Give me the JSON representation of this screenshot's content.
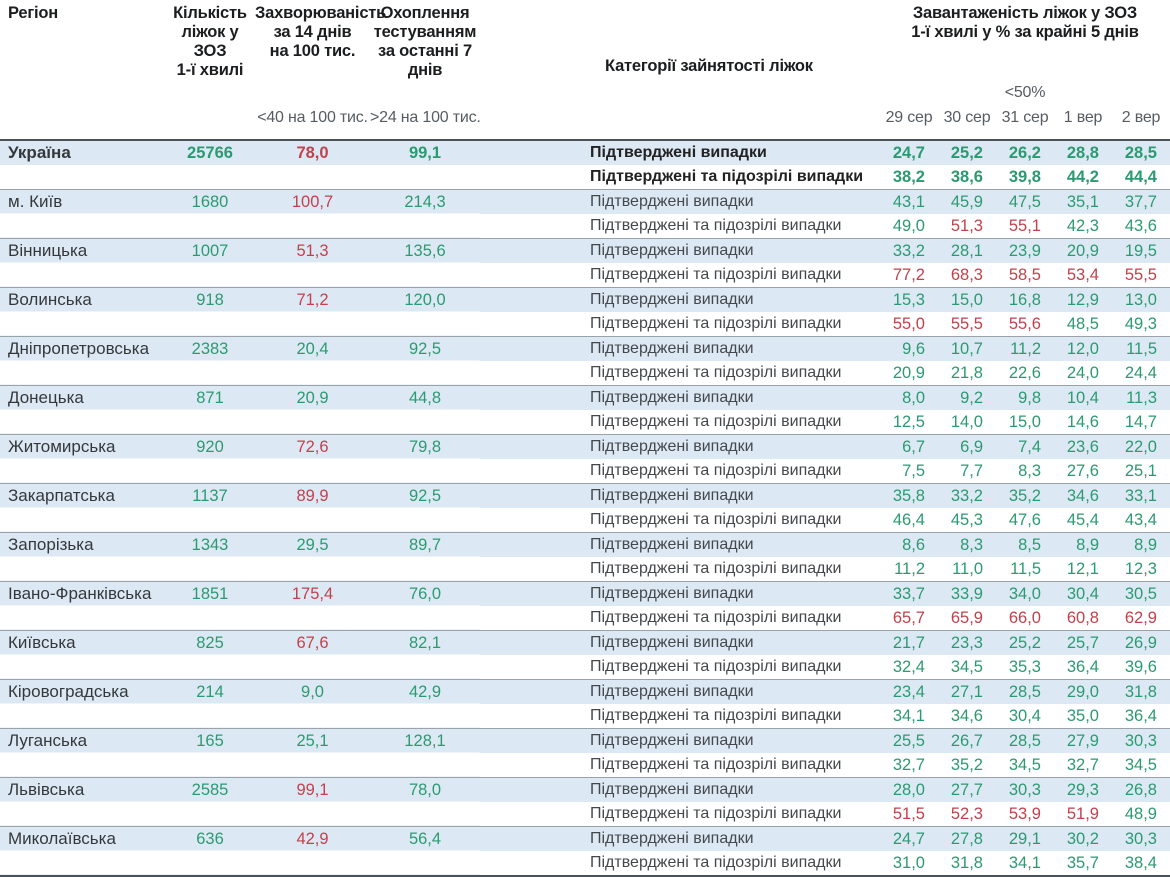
{
  "colors": {
    "good_green": "#2c9a70",
    "alert_red": "#c2414b",
    "row_tint_blue": "#dce9f5"
  },
  "header": {
    "region": "Регіон",
    "beds": "Кількість\nліжок у ЗОЗ\n1-ї хвилі",
    "incidence": "Захворюваність\nза 14 днів\nна 100 тис.",
    "testing": "Охоплення\nтестуванням\nза останні 7 днів",
    "category": "Категорії зайнятості ліжок",
    "load": "Завантаженість ліжок у ЗОЗ\n1-ї хвилі у % за крайні 5 днів",
    "incidence_threshold": "<40 на 100 тис.",
    "testing_threshold": ">24 на 100 тис.",
    "load_threshold": "<50%",
    "dates": [
      "29 сер",
      "30 сер",
      "31 сер",
      "1 вер",
      "2 вер"
    ]
  },
  "labels": {
    "confirmed": "Підтверджені випадки",
    "suspected": "Підтверджені та підозрілі випадки"
  },
  "regions": [
    {
      "name": "Україна",
      "bold": true,
      "beds": "25766",
      "incidence": "78,0",
      "inc_c": "r",
      "testing": "99,1",
      "confirmed": [
        "24,7",
        "25,2",
        "26,2",
        "28,8",
        "28,5"
      ],
      "conf_c": "ggggg",
      "suspected": [
        "38,2",
        "38,6",
        "39,8",
        "44,2",
        "44,4"
      ],
      "susp_c": "ggggg"
    },
    {
      "name": "м. Київ",
      "bold": false,
      "beds": "1680",
      "incidence": "100,7",
      "inc_c": "r",
      "testing": "214,3",
      "confirmed": [
        "43,1",
        "45,9",
        "47,5",
        "35,1",
        "37,7"
      ],
      "conf_c": "ggggg",
      "suspected": [
        "49,0",
        "51,3",
        "55,1",
        "42,3",
        "43,6"
      ],
      "susp_c": "grrgg"
    },
    {
      "name": "Вінницька",
      "bold": false,
      "beds": "1007",
      "incidence": "51,3",
      "inc_c": "r",
      "testing": "135,6",
      "confirmed": [
        "33,2",
        "28,1",
        "23,9",
        "20,9",
        "19,5"
      ],
      "conf_c": "ggggg",
      "suspected": [
        "77,2",
        "68,3",
        "58,5",
        "53,4",
        "55,5"
      ],
      "susp_c": "rrrrr"
    },
    {
      "name": "Волинська",
      "bold": false,
      "beds": "918",
      "incidence": "71,2",
      "inc_c": "r",
      "testing": "120,0",
      "confirmed": [
        "15,3",
        "15,0",
        "16,8",
        "12,9",
        "13,0"
      ],
      "conf_c": "ggggg",
      "suspected": [
        "55,0",
        "55,5",
        "55,6",
        "48,5",
        "49,3"
      ],
      "susp_c": "rrrgg"
    },
    {
      "name": "Дніпропетровська",
      "bold": false,
      "beds": "2383",
      "incidence": "20,4",
      "inc_c": "g",
      "testing": "92,5",
      "confirmed": [
        "9,6",
        "10,7",
        "11,2",
        "12,0",
        "11,5"
      ],
      "conf_c": "ggggg",
      "suspected": [
        "20,9",
        "21,8",
        "22,6",
        "24,0",
        "24,4"
      ],
      "susp_c": "ggggg"
    },
    {
      "name": "Донецька",
      "bold": false,
      "beds": "871",
      "incidence": "20,9",
      "inc_c": "g",
      "testing": "44,8",
      "confirmed": [
        "8,0",
        "9,2",
        "9,8",
        "10,4",
        "11,3"
      ],
      "conf_c": "ggggg",
      "suspected": [
        "12,5",
        "14,0",
        "15,0",
        "14,6",
        "14,7"
      ],
      "susp_c": "ggggg"
    },
    {
      "name": "Житомирська",
      "bold": false,
      "beds": "920",
      "incidence": "72,6",
      "inc_c": "r",
      "testing": "79,8",
      "confirmed": [
        "6,7",
        "6,9",
        "7,4",
        "23,6",
        "22,0"
      ],
      "conf_c": "ggggg",
      "suspected": [
        "7,5",
        "7,7",
        "8,3",
        "27,6",
        "25,1"
      ],
      "susp_c": "ggggg"
    },
    {
      "name": "Закарпатська",
      "bold": false,
      "beds": "1137",
      "incidence": "89,9",
      "inc_c": "r",
      "testing": "92,5",
      "confirmed": [
        "35,8",
        "33,2",
        "35,2",
        "34,6",
        "33,1"
      ],
      "conf_c": "ggggg",
      "suspected": [
        "46,4",
        "45,3",
        "47,6",
        "45,4",
        "43,4"
      ],
      "susp_c": "ggggg"
    },
    {
      "name": "Запорізька",
      "bold": false,
      "beds": "1343",
      "incidence": "29,5",
      "inc_c": "g",
      "testing": "89,7",
      "confirmed": [
        "8,6",
        "8,3",
        "8,5",
        "8,9",
        "8,9"
      ],
      "conf_c": "ggggg",
      "suspected": [
        "11,2",
        "11,0",
        "11,5",
        "12,1",
        "12,3"
      ],
      "susp_c": "ggggg"
    },
    {
      "name": "Івано-Франківська",
      "bold": false,
      "beds": "1851",
      "incidence": "175,4",
      "inc_c": "r",
      "testing": "76,0",
      "confirmed": [
        "33,7",
        "33,9",
        "34,0",
        "30,4",
        "30,5"
      ],
      "conf_c": "ggggg",
      "suspected": [
        "65,7",
        "65,9",
        "66,0",
        "60,8",
        "62,9"
      ],
      "susp_c": "rrrrr"
    },
    {
      "name": "Київська",
      "bold": false,
      "beds": "825",
      "incidence": "67,6",
      "inc_c": "r",
      "testing": "82,1",
      "confirmed": [
        "21,7",
        "23,3",
        "25,2",
        "25,7",
        "26,9"
      ],
      "conf_c": "ggggg",
      "suspected": [
        "32,4",
        "34,5",
        "35,3",
        "36,4",
        "39,6"
      ],
      "susp_c": "ggggg"
    },
    {
      "name": "Кіровоградська",
      "bold": false,
      "beds": "214",
      "incidence": "9,0",
      "inc_c": "g",
      "testing": "42,9",
      "confirmed": [
        "23,4",
        "27,1",
        "28,5",
        "29,0",
        "31,8"
      ],
      "conf_c": "ggggg",
      "suspected": [
        "34,1",
        "34,6",
        "30,4",
        "35,0",
        "36,4"
      ],
      "susp_c": "ggggg"
    },
    {
      "name": "Луганська",
      "bold": false,
      "beds": "165",
      "incidence": "25,1",
      "inc_c": "g",
      "testing": "128,1",
      "confirmed": [
        "25,5",
        "26,7",
        "28,5",
        "27,9",
        "30,3"
      ],
      "conf_c": "ggggg",
      "suspected": [
        "32,7",
        "35,2",
        "34,5",
        "32,7",
        "34,5"
      ],
      "susp_c": "ggggg"
    },
    {
      "name": "Львівська",
      "bold": false,
      "beds": "2585",
      "incidence": "99,1",
      "inc_c": "r",
      "testing": "78,0",
      "confirmed": [
        "28,0",
        "27,7",
        "30,3",
        "29,3",
        "26,8"
      ],
      "conf_c": "ggggg",
      "suspected": [
        "51,5",
        "52,3",
        "53,9",
        "51,9",
        "48,9"
      ],
      "susp_c": "rrrrg"
    },
    {
      "name": "Миколаївська",
      "bold": false,
      "beds": "636",
      "incidence": "42,9",
      "inc_c": "r",
      "testing": "56,4",
      "confirmed": [
        "24,7",
        "27,8",
        "29,1",
        "30,2",
        "30,3"
      ],
      "conf_c": "ggggg",
      "suspected": [
        "31,0",
        "31,8",
        "34,1",
        "35,7",
        "38,4"
      ],
      "susp_c": "ggggg"
    }
  ]
}
